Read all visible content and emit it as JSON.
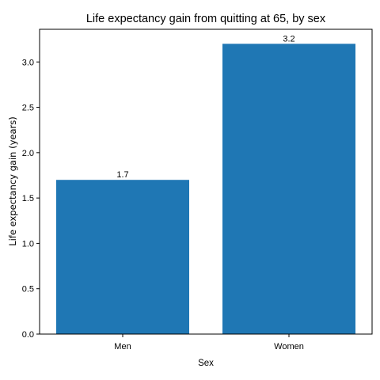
{
  "chart_data": {
    "type": "bar",
    "title": "Life expectancy gain from quitting at 65, by sex",
    "xlabel": "Sex",
    "ylabel": "Life expectancy gain (years)",
    "categories": [
      "Men",
      "Women"
    ],
    "values": [
      1.7,
      3.2
    ],
    "data_labels": [
      "1.7",
      "3.2"
    ],
    "ylim": [
      0,
      3.36
    ],
    "yticks": [
      0.0,
      0.5,
      1.0,
      1.5,
      2.0,
      2.5,
      3.0
    ],
    "ytick_labels": [
      "0.0",
      "0.5",
      "1.0",
      "1.5",
      "2.0",
      "2.5",
      "3.0"
    ],
    "grid": false,
    "bar_color": "#1f77b4"
  }
}
